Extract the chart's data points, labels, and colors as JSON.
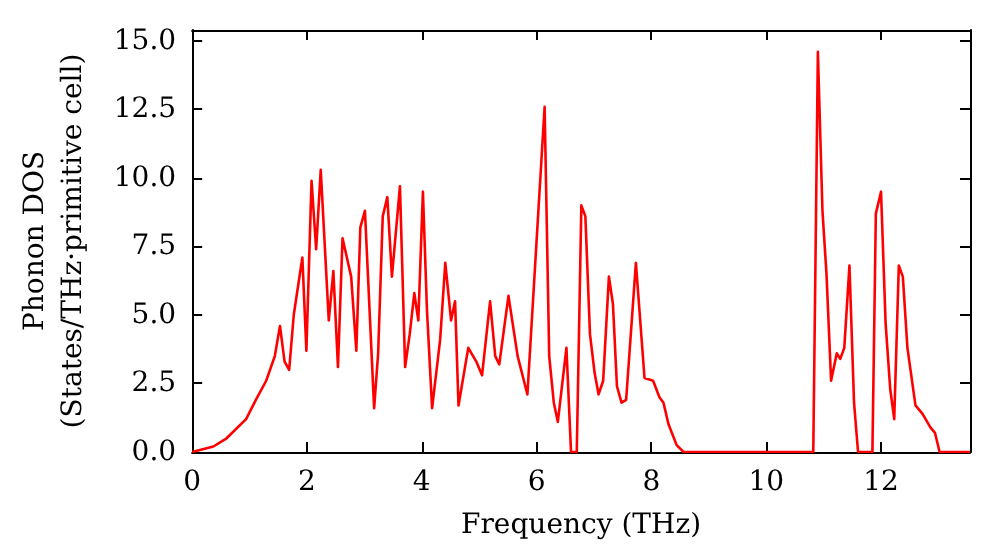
{
  "chart_data": {
    "type": "line",
    "xlabel": "Frequency (THz)",
    "ylabel": "Phonon DOS\n(States/THz·primitive cell)",
    "xlim": [
      0,
      13.55
    ],
    "xticks": [
      0,
      2,
      4,
      6,
      8,
      10,
      12
    ],
    "ylim": [
      0,
      15.4
    ],
    "yticks": [
      {
        "value": 0,
        "label": "0.0"
      },
      {
        "value": 2.5,
        "label": "2.5"
      },
      {
        "value": 5,
        "label": "5.0"
      },
      {
        "value": 7.5,
        "label": "7.5"
      },
      {
        "value": 10,
        "label": "10.0"
      },
      {
        "value": 12.5,
        "label": "12.5"
      },
      {
        "value": 15,
        "label": "15.0"
      }
    ],
    "grid": false,
    "marker": "none",
    "line_style": "solid",
    "series": [
      {
        "color": "#ff0000",
        "x": [
          0,
          0.37,
          0.6,
          0.94,
          1.11,
          1.29,
          1.44,
          1.53,
          1.61,
          1.69,
          1.77,
          1.92,
          1.99,
          2.08,
          2.16,
          2.24,
          2.38,
          2.46,
          2.54,
          2.62,
          2.77,
          2.86,
          2.93,
          3.01,
          3.17,
          3.24,
          3.32,
          3.4,
          3.48,
          3.62,
          3.71,
          3.79,
          3.87,
          3.94,
          4.02,
          4.09,
          4.18,
          4.32,
          4.41,
          4.51,
          4.58,
          4.64,
          4.81,
          4.95,
          5.05,
          5.19,
          5.28,
          5.35,
          5.51,
          5.67,
          5.84,
          6.14,
          6.22,
          6.3,
          6.37,
          6.52,
          6.6,
          6.7,
          6.78,
          6.85,
          6.93,
          7.01,
          7.08,
          7.16,
          7.26,
          7.33,
          7.4,
          7.48,
          7.56,
          7.73,
          7.88,
          8.03,
          8.14,
          8.21,
          8.3,
          8.44,
          8.56,
          10.82,
          10.9,
          10.98,
          11.05,
          11.13,
          11.23,
          11.29,
          11.36,
          11.45,
          11.53,
          11.6,
          11.85,
          11.91,
          12,
          12.08,
          12.16,
          12.23,
          12.31,
          12.38,
          12.46,
          12.6,
          12.72,
          12.86,
          12.94,
          13.02,
          13.55
        ],
        "values": [
          0,
          0.2,
          0.5,
          1.2,
          1.9,
          2.6,
          3.5,
          4.6,
          3.3,
          3,
          5,
          7.1,
          3.7,
          9.9,
          7.4,
          10.3,
          4.8,
          6.6,
          3.1,
          7.8,
          6.4,
          3.7,
          8.2,
          8.8,
          1.6,
          3.6,
          8.6,
          9.3,
          6.4,
          9.7,
          3.1,
          4.3,
          5.8,
          4.8,
          9.5,
          5.2,
          1.6,
          4.1,
          6.9,
          4.8,
          5.5,
          1.7,
          3.8,
          3.3,
          2.8,
          5.5,
          3.5,
          3.2,
          5.7,
          3.5,
          2.1,
          12.6,
          3.5,
          1.8,
          1.1,
          3.8,
          0,
          0,
          9,
          8.6,
          4.3,
          2.9,
          2.1,
          2.6,
          6.4,
          5.4,
          2.4,
          1.8,
          1.9,
          6.9,
          2.7,
          2.6,
          2,
          1.8,
          1,
          0.25,
          0,
          0,
          14.6,
          8.8,
          6.5,
          2.6,
          3.6,
          3.4,
          3.8,
          6.8,
          1.8,
          0,
          0,
          8.7,
          9.5,
          4.7,
          2.3,
          1.2,
          6.8,
          6.4,
          3.8,
          1.7,
          1.4,
          0.9,
          0.7,
          0,
          0
        ]
      }
    ]
  }
}
